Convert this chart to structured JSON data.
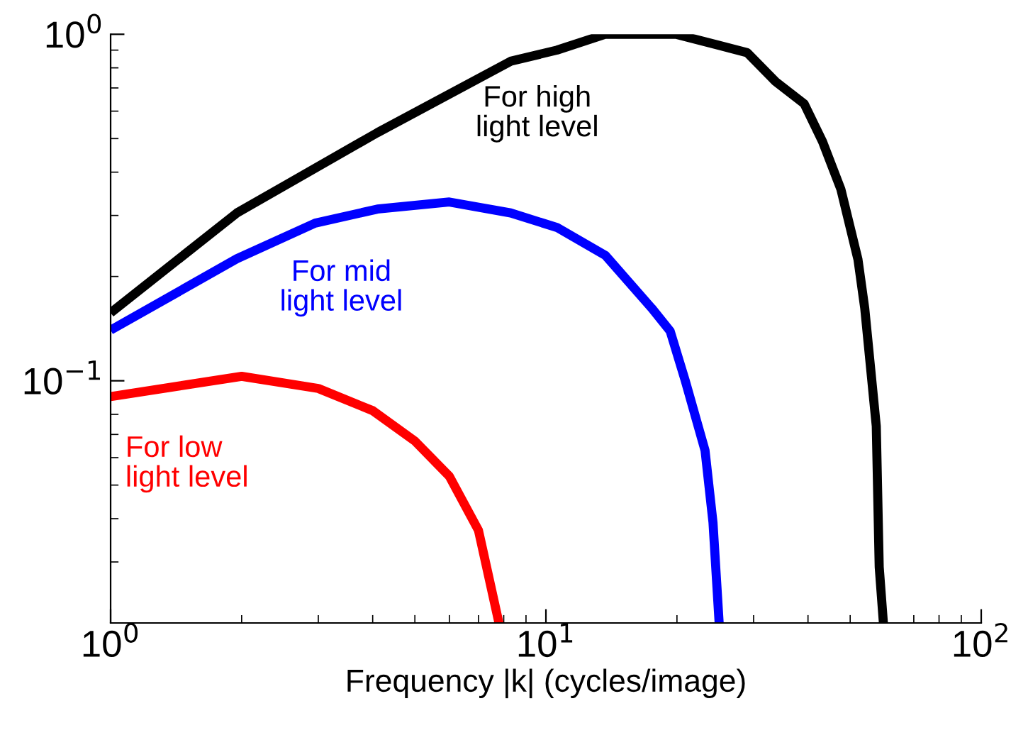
{
  "chart_data": {
    "type": "line",
    "xlabel": "Frequency |k| (cycles/image)",
    "log": "xy",
    "xlim": [
      1,
      100
    ],
    "ylim": [
      0.02,
      1
    ],
    "xticks": [
      {
        "value": 1,
        "label": "10$^{0}$"
      },
      {
        "value": 10,
        "label": "10$^{1}$"
      },
      {
        "value": 100,
        "label": "10$^{2}$"
      }
    ],
    "yticks": [
      {
        "value": 0.1,
        "label": "10$^{−1}$"
      },
      {
        "value": 1,
        "label": "10$^{0}$"
      }
    ],
    "grid": false,
    "marker": "none",
    "line_style": "solid",
    "series": [
      {
        "name": "For high\nlight level",
        "color": "#000000",
        "x": [
          1,
          1.95,
          4.1,
          8.3,
          10.6,
          13.7,
          19.9,
          29,
          33.7,
          39.2,
          43.2,
          47.6,
          52.1,
          54,
          57.4,
          58.3,
          59.6
        ],
        "values": [
          0.157,
          0.305,
          0.52,
          0.836,
          0.9,
          1.0,
          1.0,
          0.885,
          0.73,
          0.63,
          0.49,
          0.357,
          0.224,
          0.162,
          0.074,
          0.029,
          0.02
        ]
      },
      {
        "name": "For mid\nlight level",
        "color": "#0000ff",
        "x": [
          1,
          1.95,
          2.95,
          4.1,
          6,
          8.3,
          10.6,
          13.7,
          17.5,
          19.3,
          20.9,
          23.2,
          24.2,
          25
        ],
        "values": [
          0.14,
          0.225,
          0.285,
          0.313,
          0.328,
          0.305,
          0.277,
          0.23,
          0.162,
          0.139,
          0.1,
          0.063,
          0.039,
          0.02
        ]
      },
      {
        "name": "For low\nlight level",
        "color": "#ff0000",
        "x": [
          1,
          2,
          3,
          4,
          5,
          6,
          7,
          7.8
        ],
        "values": [
          0.09,
          0.103,
          0.095,
          0.082,
          0.067,
          0.053,
          0.037,
          0.02
        ]
      }
    ]
  }
}
